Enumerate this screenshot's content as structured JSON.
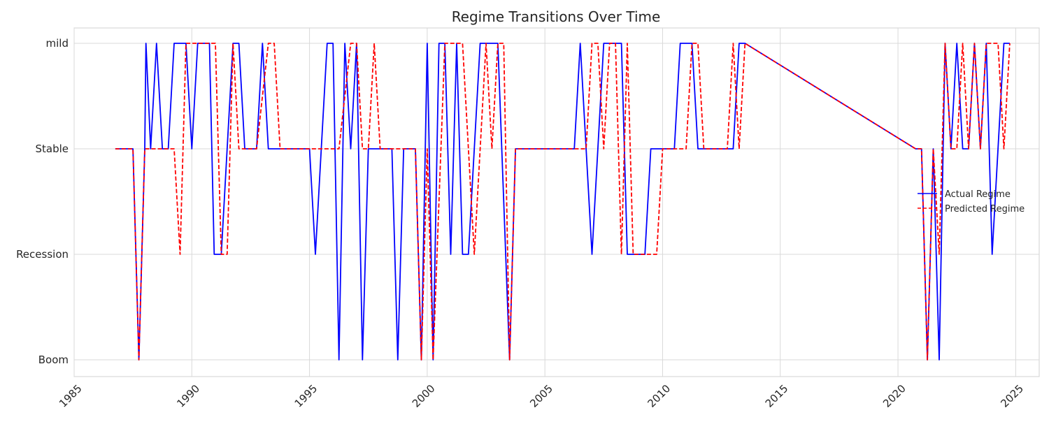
{
  "chart_data": {
    "type": "line",
    "title": "Regime Transitions Over Time",
    "xlabel": "",
    "ylabel": "",
    "xlim": [
      1985,
      2026
    ],
    "x_ticks": [
      1985,
      1990,
      1995,
      2000,
      2005,
      2010,
      2015,
      2020,
      2025
    ],
    "y_categories": [
      "Boom",
      "Recession",
      "Stable",
      "mild"
    ],
    "grid": true,
    "legend_position": "center-right",
    "series": [
      {
        "name": "Actual Regime",
        "color": "#0000ff",
        "style": "solid",
        "points": [
          [
            1986.75,
            "Stable"
          ],
          [
            1987.5,
            "Stable"
          ],
          [
            1987.75,
            "Boom"
          ],
          [
            1988.0,
            "Stable"
          ],
          [
            1988.05,
            "mild"
          ],
          [
            1988.25,
            "Stable"
          ],
          [
            1988.5,
            "mild"
          ],
          [
            1988.75,
            "Stable"
          ],
          [
            1989.0,
            "Stable"
          ],
          [
            1989.25,
            "mild"
          ],
          [
            1989.75,
            "mild"
          ],
          [
            1990.0,
            "Stable"
          ],
          [
            1990.25,
            "mild"
          ],
          [
            1990.75,
            "mild"
          ],
          [
            1990.95,
            "Recession"
          ],
          [
            1991.25,
            "Recession"
          ],
          [
            1991.75,
            "mild"
          ],
          [
            1992.0,
            "mild"
          ],
          [
            1992.25,
            "Stable"
          ],
          [
            1992.75,
            "Stable"
          ],
          [
            1993.0,
            "mild"
          ],
          [
            1993.25,
            "Stable"
          ],
          [
            1995.0,
            "Stable"
          ],
          [
            1995.25,
            "Recession"
          ],
          [
            1995.75,
            "mild"
          ],
          [
            1996.0,
            "mild"
          ],
          [
            1996.25,
            "Boom"
          ],
          [
            1996.5,
            "mild"
          ],
          [
            1996.75,
            "Stable"
          ],
          [
            1997.0,
            "mild"
          ],
          [
            1997.25,
            "Boom"
          ],
          [
            1997.5,
            "Stable"
          ],
          [
            1998.5,
            "Stable"
          ],
          [
            1998.75,
            "Boom"
          ],
          [
            1999.0,
            "Stable"
          ],
          [
            1999.5,
            "Stable"
          ],
          [
            1999.75,
            "Boom"
          ],
          [
            2000.0,
            "mild"
          ],
          [
            2000.25,
            "Boom"
          ],
          [
            2000.5,
            "mild"
          ],
          [
            2000.75,
            "mild"
          ],
          [
            2001.0,
            "Recession"
          ],
          [
            2001.25,
            "mild"
          ],
          [
            2001.5,
            "Recession"
          ],
          [
            2001.75,
            "Recession"
          ],
          [
            2002.0,
            "Stable"
          ],
          [
            2002.25,
            "mild"
          ],
          [
            2002.5,
            "mild"
          ],
          [
            2003.0,
            "mild"
          ],
          [
            2003.5,
            "Boom"
          ],
          [
            2003.75,
            "Stable"
          ],
          [
            2006.25,
            "Stable"
          ],
          [
            2006.5,
            "mild"
          ],
          [
            2007.0,
            "Recession"
          ],
          [
            2007.5,
            "mild"
          ],
          [
            2008.25,
            "mild"
          ],
          [
            2008.5,
            "Recession"
          ],
          [
            2009.25,
            "Recession"
          ],
          [
            2009.5,
            "Stable"
          ],
          [
            2010.5,
            "Stable"
          ],
          [
            2010.75,
            "mild"
          ],
          [
            2011.0,
            "mild"
          ],
          [
            2011.25,
            "mild"
          ],
          [
            2011.5,
            "Stable"
          ],
          [
            2013.0,
            "Stable"
          ],
          [
            2013.25,
            "mild"
          ],
          [
            2013.5,
            "mild"
          ],
          [
            2020.75,
            "Stable"
          ],
          [
            2021.0,
            "Stable"
          ],
          [
            2021.25,
            "Boom"
          ],
          [
            2021.5,
            "Stable"
          ],
          [
            2021.75,
            "Boom"
          ],
          [
            2022.0,
            "mild"
          ],
          [
            2022.25,
            "Stable"
          ],
          [
            2022.5,
            "mild"
          ],
          [
            2022.75,
            "Stable"
          ],
          [
            2023.0,
            "Stable"
          ],
          [
            2023.25,
            "mild"
          ],
          [
            2023.5,
            "Stable"
          ],
          [
            2023.75,
            "mild"
          ],
          [
            2024.0,
            "Recession"
          ],
          [
            2024.5,
            "mild"
          ],
          [
            2024.75,
            "mild"
          ]
        ]
      },
      {
        "name": "Predicted Regime",
        "color": "#ff0000",
        "style": "dashed",
        "points": [
          [
            1986.75,
            "Stable"
          ],
          [
            1987.5,
            "Stable"
          ],
          [
            1987.75,
            "Boom"
          ],
          [
            1988.0,
            "Stable"
          ],
          [
            1989.25,
            "Stable"
          ],
          [
            1989.5,
            "Recession"
          ],
          [
            1989.75,
            "mild"
          ],
          [
            1991.0,
            "mild"
          ],
          [
            1991.25,
            "Recession"
          ],
          [
            1991.5,
            "Recession"
          ],
          [
            1991.75,
            "mild"
          ],
          [
            1992.0,
            "Stable"
          ],
          [
            1992.75,
            "Stable"
          ],
          [
            1993.25,
            "mild"
          ],
          [
            1993.5,
            "mild"
          ],
          [
            1993.75,
            "Stable"
          ],
          [
            1996.25,
            "Stable"
          ],
          [
            1996.75,
            "mild"
          ],
          [
            1997.0,
            "mild"
          ],
          [
            1997.25,
            "Stable"
          ],
          [
            1997.5,
            "Stable"
          ],
          [
            1997.75,
            "mild"
          ],
          [
            1998.0,
            "Stable"
          ],
          [
            1999.5,
            "Stable"
          ],
          [
            1999.75,
            "Boom"
          ],
          [
            2000.0,
            "Stable"
          ],
          [
            2000.25,
            "Boom"
          ],
          [
            2000.75,
            "mild"
          ],
          [
            2001.5,
            "mild"
          ],
          [
            2002.0,
            "Recession"
          ],
          [
            2002.5,
            "mild"
          ],
          [
            2002.75,
            "Stable"
          ],
          [
            2003.0,
            "mild"
          ],
          [
            2003.25,
            "mild"
          ],
          [
            2003.5,
            "Boom"
          ],
          [
            2003.75,
            "Stable"
          ],
          [
            2006.75,
            "Stable"
          ],
          [
            2007.0,
            "mild"
          ],
          [
            2007.25,
            "mild"
          ],
          [
            2007.5,
            "Stable"
          ],
          [
            2007.75,
            "mild"
          ],
          [
            2008.0,
            "mild"
          ],
          [
            2008.25,
            "Recession"
          ],
          [
            2008.5,
            "mild"
          ],
          [
            2008.75,
            "Recession"
          ],
          [
            2009.75,
            "Recession"
          ],
          [
            2010.0,
            "Stable"
          ],
          [
            2011.0,
            "Stable"
          ],
          [
            2011.25,
            "mild"
          ],
          [
            2011.5,
            "mild"
          ],
          [
            2011.75,
            "Stable"
          ],
          [
            2012.75,
            "Stable"
          ],
          [
            2013.0,
            "mild"
          ],
          [
            2013.25,
            "Stable"
          ],
          [
            2013.5,
            "mild"
          ],
          [
            2020.75,
            "Stable"
          ],
          [
            2021.0,
            "Stable"
          ],
          [
            2021.25,
            "Boom"
          ],
          [
            2021.5,
            "Stable"
          ],
          [
            2021.75,
            "Recession"
          ],
          [
            2022.0,
            "mild"
          ],
          [
            2022.25,
            "Stable"
          ],
          [
            2022.5,
            "Stable"
          ],
          [
            2022.75,
            "mild"
          ],
          [
            2023.0,
            "Stable"
          ],
          [
            2023.25,
            "mild"
          ],
          [
            2023.5,
            "Stable"
          ],
          [
            2023.75,
            "mild"
          ],
          [
            2024.25,
            "mild"
          ],
          [
            2024.5,
            "Stable"
          ],
          [
            2024.75,
            "mild"
          ]
        ]
      }
    ]
  }
}
